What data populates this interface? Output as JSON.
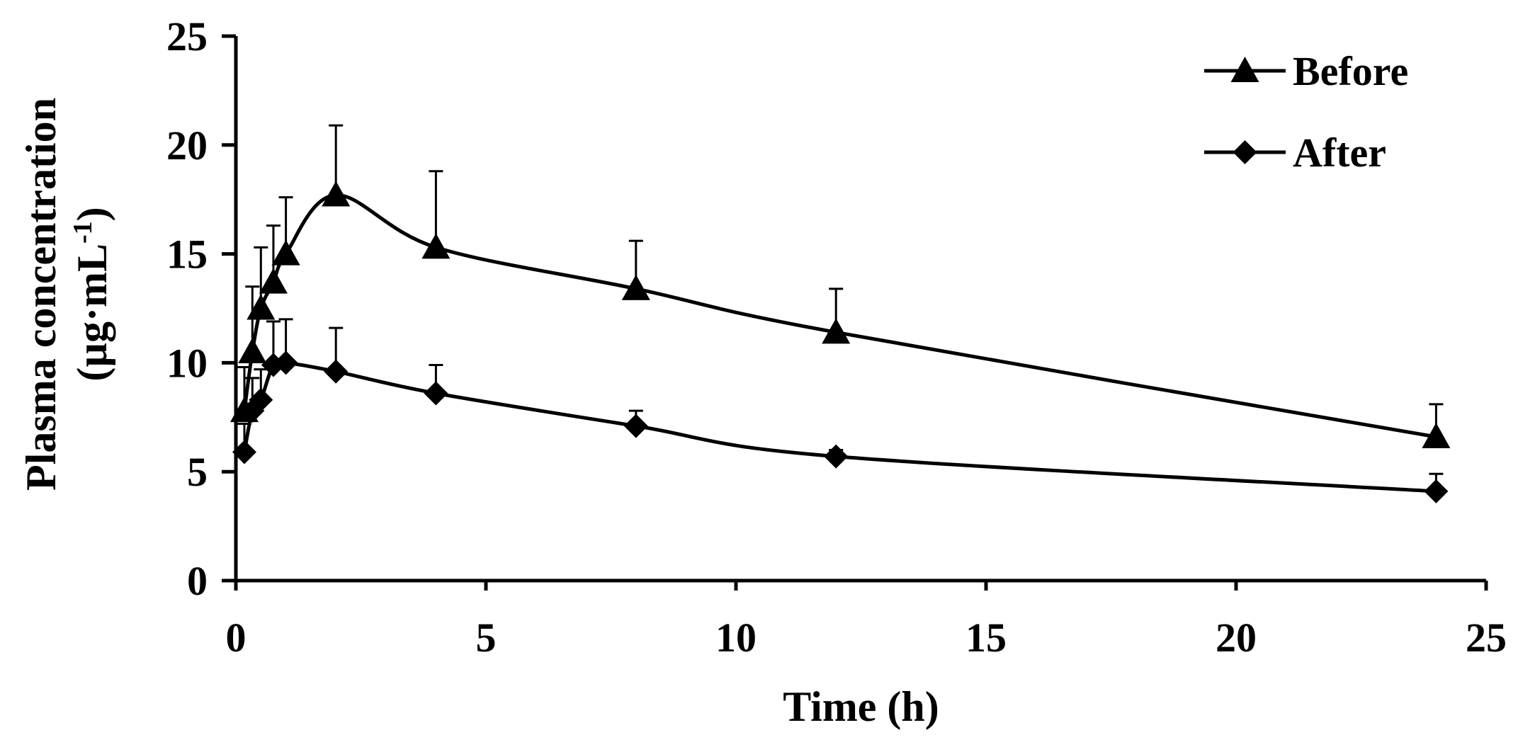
{
  "chart_data": {
    "type": "line",
    "title": "",
    "xlabel": "Time (h)",
    "ylabel_line1": "Plasma concentration",
    "ylabel_line2_prefix": "(µg·mL",
    "ylabel_line2_exp": "-1",
    "ylabel_line2_suffix": ")",
    "xlim": [
      0,
      25
    ],
    "ylim": [
      0,
      25
    ],
    "xticks": [
      0,
      5,
      10,
      15,
      20,
      25
    ],
    "yticks": [
      0,
      5,
      10,
      15,
      20,
      25
    ],
    "grid": false,
    "legend_position": "top-right",
    "series": [
      {
        "name": "Before",
        "marker": "triangle",
        "x": [
          0.17,
          0.33,
          0.5,
          0.75,
          1,
          2,
          4,
          8,
          12,
          24
        ],
        "y": [
          7.8,
          10.5,
          12.5,
          13.7,
          15.0,
          17.7,
          15.3,
          13.4,
          11.4,
          6.6
        ],
        "error": [
          2.0,
          3.0,
          2.8,
          2.6,
          2.6,
          3.2,
          3.5,
          2.2,
          2.0,
          1.5
        ]
      },
      {
        "name": "After",
        "marker": "diamond",
        "x": [
          0.17,
          0.33,
          0.5,
          0.75,
          1,
          2,
          4,
          8,
          12,
          24
        ],
        "y": [
          5.9,
          7.8,
          8.3,
          9.9,
          10.0,
          9.6,
          8.6,
          7.1,
          5.7,
          4.1
        ],
        "error": [
          1.3,
          1.5,
          1.4,
          2.0,
          2.0,
          2.0,
          1.3,
          0.7,
          0.3,
          0.8
        ]
      }
    ]
  }
}
